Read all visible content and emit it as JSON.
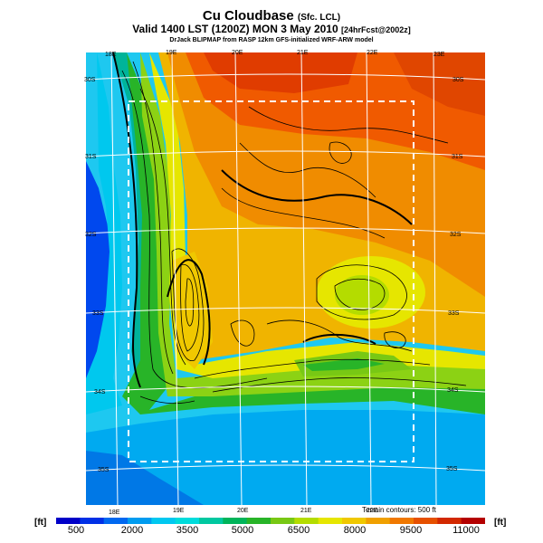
{
  "header": {
    "title": "Cu Cloudbase",
    "title_suffix": "(Sfc. LCL)",
    "valid_line": "Valid 1400 LST (1200Z) MON 3 May 2010",
    "valid_suffix": "[24hrFcst@2002z]",
    "credit": "DrJack BLIPMAP from RASP 12km GFS-initialized WRF-ARW model"
  },
  "map": {
    "lon_labels_top": [
      "18E",
      "19E",
      "20E",
      "21E",
      "22E",
      "23E"
    ],
    "lon_labels_bottom": [
      "18E",
      "19E",
      "20E",
      "21E",
      "22E"
    ],
    "lat_labels_left": [
      "30S",
      "31S",
      "32S",
      "33S",
      "34S",
      "35S"
    ],
    "lat_labels_right": [
      "30S",
      "31S",
      "32S",
      "33S",
      "34S",
      "35S"
    ],
    "contour_note": "Terrain contours: 500 ft"
  },
  "colorbar": {
    "unit_left": "[ft]",
    "unit_right": "[ft]",
    "ticks": [
      "500",
      "2000",
      "3500",
      "5000",
      "6500",
      "8000",
      "9500",
      "11000"
    ],
    "colors": [
      "#0000c8",
      "#0030e6",
      "#0068f0",
      "#009cf0",
      "#00c8f0",
      "#00dcdc",
      "#00c8a0",
      "#00b45a",
      "#28b428",
      "#78c814",
      "#b4dc00",
      "#e6e600",
      "#f0c800",
      "#f0a000",
      "#f07800",
      "#e65000",
      "#d22800",
      "#b40000"
    ]
  },
  "chart_data": {
    "type": "heatmap",
    "title": "Cu Cloudbase",
    "variable": "Surface LCL cloudbase height",
    "units": "ft",
    "color_scale_range": [
      500,
      11000
    ],
    "color_scale_ticks": [
      500,
      2000,
      3500,
      5000,
      6500,
      8000,
      9500,
      11000
    ],
    "longitude_range_deg_E": [
      17.6,
      23.2
    ],
    "latitude_range_deg_S": [
      29.8,
      35.5
    ],
    "regions": [
      {
        "area": "north (30S-31S)",
        "cloudbase_ft": 9500
      },
      {
        "area": "northeast interior",
        "cloudbase_ft": 8500
      },
      {
        "area": "central interior",
        "cloudbase_ft": 8000
      },
      {
        "area": "ridge near 33S 21.5E",
        "cloudbase_ft": 6500
      },
      {
        "area": "southern coast",
        "cloudbase_ft": 3000
      },
      {
        "area": "southern ocean",
        "cloudbase_ft": 2000
      },
      {
        "area": "west coast ocean",
        "cloudbase_ft": 800
      }
    ],
    "terrain_contour_interval_ft": 500
  }
}
